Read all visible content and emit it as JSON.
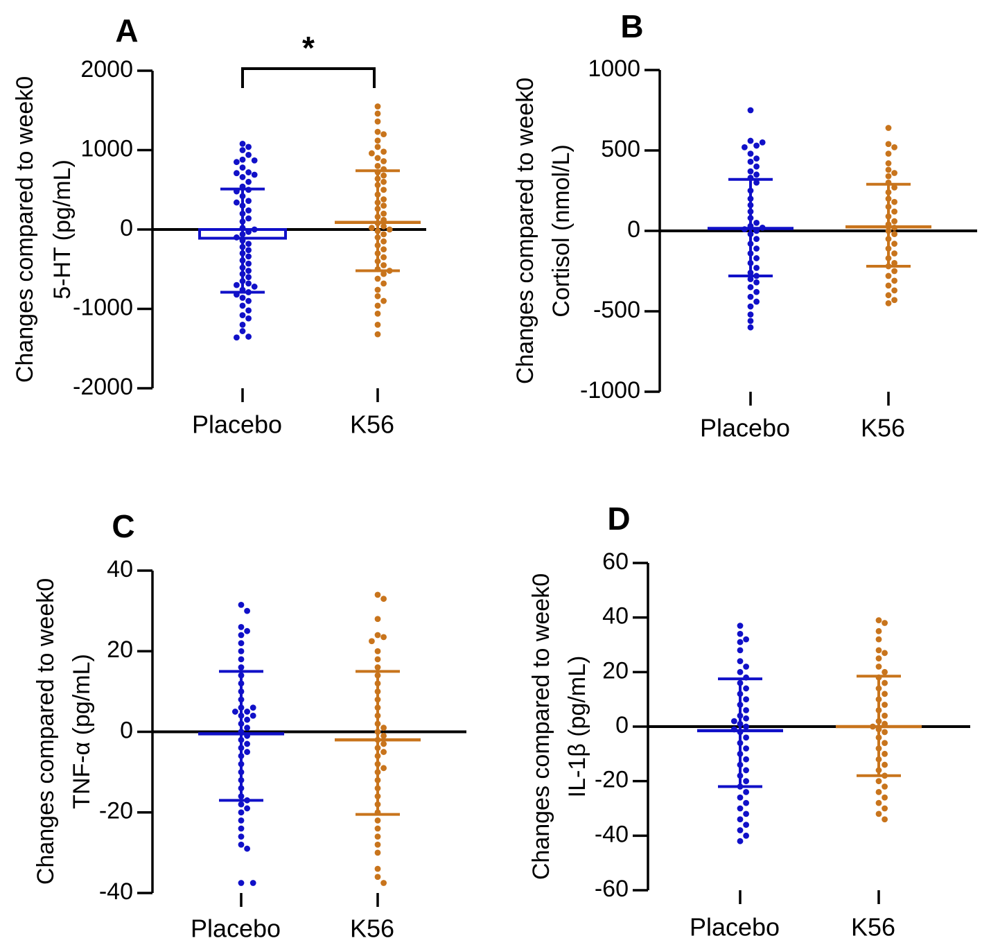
{
  "colors": {
    "placebo": "#1010c8",
    "k56": "#c8741c",
    "axis": "#000000"
  },
  "chart_data": [
    {
      "type": "scatter",
      "panel": "A",
      "ylabel_line1": "Changes compared to week0",
      "ylabel_line2": "5-HT (pg/mL)",
      "ylim": [
        -2000,
        2000
      ],
      "yticks": [
        2000,
        1000,
        0,
        -1000,
        -2000
      ],
      "ytick_labels": [
        "2000",
        "1000",
        "0",
        "-1000",
        "-2000"
      ],
      "categories": [
        "Placebo",
        "K56"
      ],
      "significance": "*",
      "series": [
        {
          "name": "Placebo",
          "color": "#1010c8",
          "mean": -110,
          "sd_low": -790,
          "sd_high": 510,
          "box": true,
          "values": [
            1080,
            1040,
            1000,
            940,
            880,
            870,
            850,
            780,
            720,
            710,
            690,
            660,
            600,
            540,
            500,
            480,
            420,
            360,
            340,
            300,
            240,
            200,
            140,
            100,
            20,
            0,
            -30,
            -60,
            -100,
            -140,
            -180,
            -220,
            -260,
            -300,
            -340,
            -390,
            -430,
            -480,
            -520,
            -560,
            -600,
            -650,
            -680,
            -700,
            -720,
            -760,
            -790,
            -820,
            -860,
            -900,
            -960,
            -1020,
            -1080,
            -1120,
            -1200,
            -1280,
            -1350,
            -1360
          ]
        },
        {
          "name": "K56",
          "color": "#c8741c",
          "mean": 90,
          "sd_low": -520,
          "sd_high": 740,
          "box": false,
          "values": [
            1550,
            1460,
            1360,
            1230,
            1200,
            1120,
            1040,
            980,
            960,
            900,
            860,
            800,
            760,
            720,
            680,
            640,
            600,
            560,
            500,
            440,
            380,
            340,
            300,
            260,
            200,
            160,
            120,
            80,
            40,
            20,
            0,
            -20,
            -60,
            -100,
            -150,
            -200,
            -250,
            -300,
            -350,
            -400,
            -450,
            -500,
            -520,
            -560,
            -620,
            -680,
            -760,
            -840,
            -900,
            -960,
            -1060,
            -1200,
            -1320
          ]
        }
      ]
    },
    {
      "type": "scatter",
      "panel": "B",
      "ylabel_line1": "Changes compared to week0",
      "ylabel_line2": "Cortisol (nmol/L)",
      "ylim": [
        -1000,
        1000
      ],
      "yticks": [
        1000,
        500,
        0,
        -500,
        -1000
      ],
      "ytick_labels": [
        "1000",
        "500",
        "0",
        "-500",
        "-1000"
      ],
      "categories": [
        "Placebo",
        "K56"
      ],
      "series": [
        {
          "name": "Placebo",
          "color": "#1010c8",
          "mean": 15,
          "sd_low": -280,
          "sd_high": 320,
          "box": false,
          "values": [
            750,
            560,
            550,
            530,
            520,
            480,
            450,
            430,
            400,
            370,
            350,
            330,
            300,
            250,
            200,
            160,
            120,
            80,
            50,
            30,
            20,
            10,
            0,
            -20,
            -50,
            -80,
            -110,
            -140,
            -170,
            -200,
            -230,
            -260,
            -280,
            -300,
            -320,
            -350,
            -380,
            -410,
            -440,
            -470,
            -520,
            -560,
            -600
          ]
        },
        {
          "name": "K56",
          "color": "#c8741c",
          "mean": 25,
          "sd_low": -220,
          "sd_high": 290,
          "box": false,
          "values": [
            640,
            540,
            520,
            480,
            420,
            380,
            360,
            340,
            300,
            270,
            240,
            200,
            180,
            150,
            120,
            90,
            60,
            40,
            20,
            0,
            -20,
            -50,
            -80,
            -110,
            -140,
            -170,
            -200,
            -220,
            -250,
            -280,
            -310,
            -340,
            -370,
            -400,
            -430,
            -450
          ]
        }
      ]
    },
    {
      "type": "scatter",
      "panel": "C",
      "ylabel_line1": "Changes compared to week0",
      "ylabel_line2": "TNF-α (pg/mL)",
      "ylim": [
        -40,
        40
      ],
      "yticks": [
        40,
        20,
        0,
        -20,
        -40
      ],
      "ytick_labels": [
        "40",
        "20",
        "0",
        "-20",
        "-40"
      ],
      "categories": [
        "Placebo",
        "K56"
      ],
      "series": [
        {
          "name": "Placebo",
          "color": "#1010c8",
          "mean": -0.5,
          "sd_low": -17,
          "sd_high": 15,
          "box": false,
          "values": [
            31.5,
            30,
            26,
            25,
            24,
            22,
            20,
            18,
            16,
            14,
            12,
            10,
            8,
            6,
            6,
            5,
            5,
            4,
            4,
            3,
            2,
            1,
            0,
            -1,
            -2,
            -3,
            -4,
            -5,
            -6,
            -8,
            -10,
            -12,
            -14,
            -16,
            -17,
            -18,
            -19,
            -20,
            -22,
            -24,
            -26,
            -28,
            -29,
            -37.5,
            -37.5
          ]
        },
        {
          "name": "K56",
          "color": "#c8741c",
          "mean": -2,
          "sd_low": -20.5,
          "sd_high": 15,
          "box": false,
          "values": [
            34,
            33,
            28,
            24,
            23.5,
            22.5,
            20,
            18,
            16,
            14,
            12,
            10,
            8,
            6,
            4,
            2,
            1,
            0,
            -1,
            -2,
            -3,
            -4,
            -5,
            -6,
            -8,
            -9,
            -10,
            -12,
            -14,
            -16,
            -18,
            -20,
            -22,
            -24,
            -26,
            -28,
            -30,
            -34,
            -36,
            -37.5
          ]
        }
      ]
    },
    {
      "type": "scatter",
      "panel": "D",
      "ylabel_line1": "Changes compared to week0",
      "ylabel_line2": "IL-1β (pg/mL)",
      "ylim": [
        -60,
        60
      ],
      "yticks": [
        60,
        40,
        20,
        0,
        -20,
        -40,
        -60
      ],
      "ytick_labels": [
        "60",
        "40",
        "20",
        "0",
        "-20",
        "-40",
        "-60"
      ],
      "categories": [
        "Placebo",
        "K56"
      ],
      "series": [
        {
          "name": "Placebo",
          "color": "#1010c8",
          "mean": -1.5,
          "sd_low": -22,
          "sd_high": 17.5,
          "box": false,
          "values": [
            37,
            34,
            32,
            31,
            28,
            24,
            22,
            20,
            18,
            16,
            14,
            12,
            10,
            8,
            6,
            4,
            3,
            2,
            1,
            0,
            -1,
            -2,
            -4,
            -6,
            -8,
            -10,
            -12,
            -14,
            -16,
            -18,
            -20,
            -22,
            -24,
            -26,
            -28,
            -30,
            -32,
            -34,
            -36,
            -38,
            -40,
            -42
          ]
        },
        {
          "name": "K56",
          "color": "#c8741c",
          "mean": 0,
          "sd_low": -18,
          "sd_high": 18.5,
          "box": false,
          "values": [
            39,
            38,
            35,
            32,
            28,
            27,
            25,
            22,
            20,
            18,
            16,
            14,
            12,
            10,
            8,
            6,
            4,
            2,
            1,
            0,
            -1,
            -2,
            -4,
            -6,
            -8,
            -10,
            -12,
            -14,
            -16,
            -18,
            -20,
            -22,
            -24,
            -26,
            -28,
            -30,
            -32,
            -34
          ]
        }
      ]
    }
  ]
}
